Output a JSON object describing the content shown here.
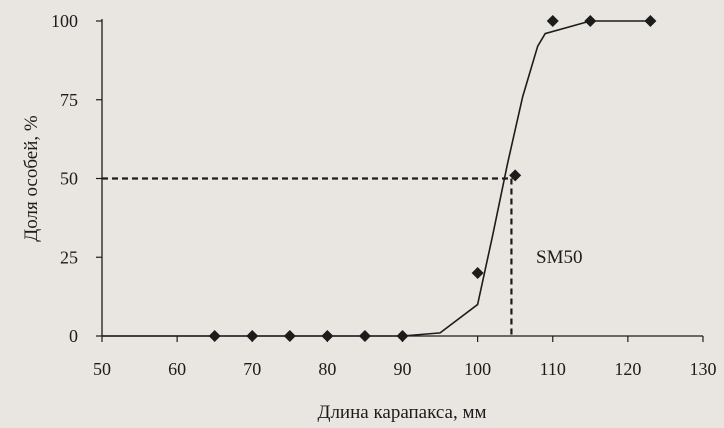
{
  "chart_data": {
    "type": "line",
    "xlabel": "Длина карапакса, мм",
    "ylabel": "Доля особей, %",
    "xlim": [
      50,
      130
    ],
    "ylim": [
      0,
      100
    ],
    "xticks": [
      50,
      60,
      70,
      80,
      90,
      100,
      110,
      120,
      130
    ],
    "yticks": [
      0,
      25,
      50,
      75,
      100
    ],
    "grid": false,
    "legend": "none",
    "observed": {
      "marker": "diamond",
      "x": [
        65,
        70,
        75,
        80,
        85,
        90,
        100,
        105,
        110,
        115,
        123
      ],
      "y": [
        0,
        0,
        0,
        0,
        0,
        0,
        20,
        51,
        100,
        100,
        100
      ]
    },
    "fitted": {
      "x": [
        50,
        80,
        85,
        90,
        95,
        100,
        102,
        104,
        106,
        108,
        109,
        115,
        123
      ],
      "y": [
        0,
        0,
        0,
        0,
        1,
        10,
        32,
        55,
        76,
        92,
        96,
        100,
        100
      ]
    },
    "sm50": {
      "label": "SM50",
      "x": 104.5,
      "y": 50
    },
    "colors": {
      "ink": "#1c1c1c",
      "background": "#e9e6e1"
    }
  }
}
